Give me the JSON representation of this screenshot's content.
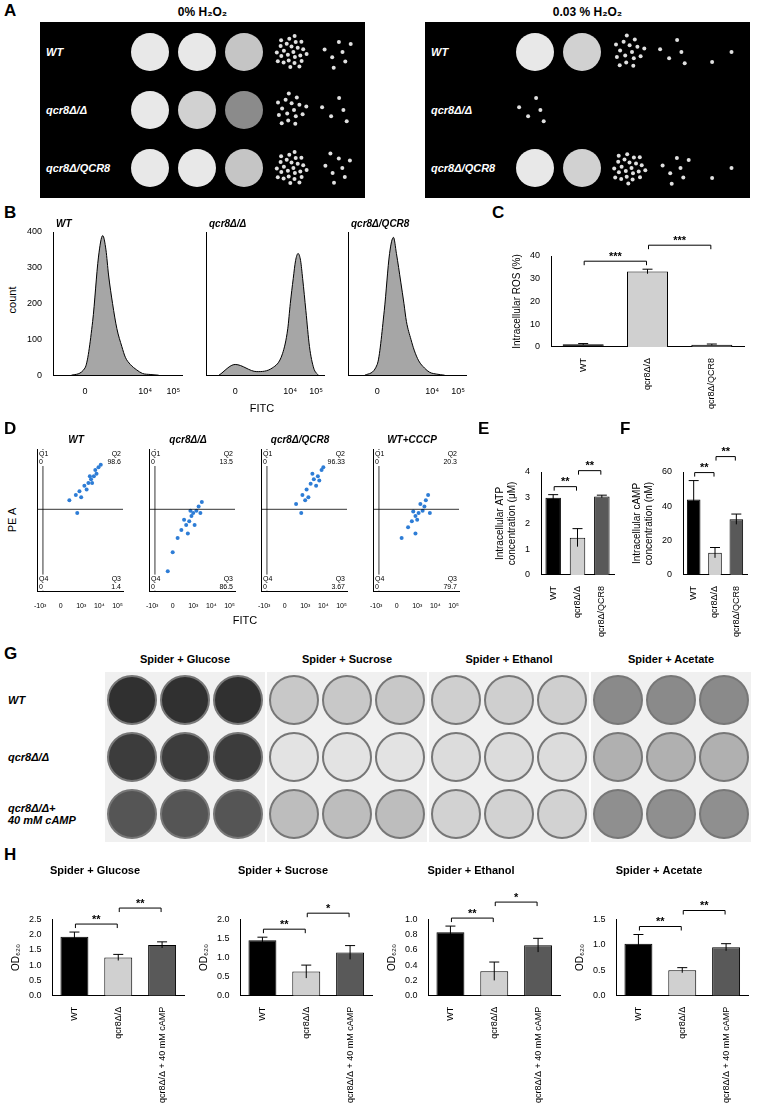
{
  "chart_data": [
    {
      "panel": "B",
      "type": "area",
      "log": "x",
      "x_label": "FITC",
      "y_label": "count",
      "xlim": [
        -1000,
        200000
      ],
      "xticks": [
        0,
        {
          "value": 10000,
          "label": "10⁴"
        },
        {
          "value": 100000,
          "label": "10⁵"
        }
      ],
      "ylim": [
        0,
        400
      ],
      "yticks": [
        0,
        100,
        200,
        300,
        400
      ],
      "color": "#a6a6a6",
      "series": [
        {
          "name": "WT",
          "x": [
            -200,
            0,
            100,
            200,
            300,
            400,
            500,
            700,
            1000,
            1500,
            2000,
            3000,
            5000,
            8000,
            15000,
            30000
          ],
          "values": [
            0,
            20,
            150,
            330,
            390,
            350,
            280,
            200,
            130,
            80,
            50,
            30,
            15,
            5,
            2,
            0
          ]
        },
        {
          "name": "qcr8Δ/Δ",
          "x": [
            -300,
            0,
            500,
            2000,
            5000,
            8000,
            10000,
            13000,
            16000,
            20000,
            25000,
            30000,
            40000,
            55000,
            80000,
            120000
          ],
          "values": [
            0,
            30,
            10,
            20,
            60,
            130,
            200,
            270,
            320,
            340,
            320,
            270,
            180,
            80,
            20,
            0
          ]
        },
        {
          "name": "qcr8Δ/QCR8",
          "x": [
            -200,
            0,
            100,
            200,
            300,
            400,
            600,
            800,
            1000,
            1500,
            2000,
            3000,
            5000,
            8000,
            15000,
            30000
          ],
          "values": [
            0,
            30,
            180,
            340,
            385,
            340,
            260,
            200,
            150,
            100,
            70,
            40,
            20,
            8,
            3,
            0
          ]
        }
      ]
    },
    {
      "panel": "C",
      "type": "bar",
      "categories": [
        "WT",
        "qcr8Δ/Δ",
        "qcr8Δ/QCR8"
      ],
      "values": [
        1.2,
        33.2,
        1.0
      ],
      "errors": [
        0.3,
        1.0,
        0.3
      ],
      "colors": [
        "#000000",
        "#d0d0d0",
        "#595959"
      ],
      "y_label": "Intracellular ROS (%)",
      "ylim": [
        0,
        40
      ],
      "yticks": [
        0,
        10,
        20,
        30,
        40
      ],
      "significance": [
        {
          "from": 0,
          "to": 1,
          "label": "***"
        },
        {
          "from": 1,
          "to": 2,
          "label": "***"
        }
      ]
    },
    {
      "panel": "D",
      "type": "scatter",
      "log": true,
      "x_label": "FITC",
      "y_label": "PE A",
      "tick_labels": "x",
      "xlim": [
        -1500,
        200000
      ],
      "ylim": [
        -1500,
        200000
      ],
      "xticks": [
        {
          "value": -1000,
          "label": "-10³"
        },
        0,
        {
          "value": 1000,
          "label": "10³"
        },
        {
          "value": 10000,
          "label": "10⁴"
        },
        {
          "value": 100000,
          "label": "10⁵"
        }
      ],
      "gates": {
        "x": -700,
        "y": 2000
      },
      "color": "#2e7dd6",
      "series": [
        {
          "name": "WT",
          "points": [
            [
              200,
              4000
            ],
            [
              500,
              6000
            ],
            [
              800,
              8000
            ],
            [
              1500,
              12000
            ],
            [
              2500,
              15000
            ],
            [
              3500,
              20000
            ],
            [
              5000,
              25000
            ],
            [
              7000,
              30000
            ],
            [
              4000,
              15000
            ],
            [
              2000,
              9000
            ],
            [
              1000,
              5000
            ],
            [
              6000,
              40000
            ],
            [
              3000,
              25000
            ],
            [
              9000,
              50000
            ],
            [
              12000,
              60000
            ],
            [
              600,
              1500
            ]
          ],
          "quadrants": [
            {
              "label": "Q1",
              "value": 0
            },
            {
              "label": "Q2",
              "value": 98.6
            },
            {
              "label": "Q3",
              "value": 1.4
            },
            {
              "label": "Q4",
              "value": 0
            }
          ]
        },
        {
          "name": "qcr8Δ/Δ",
          "points": [
            [
              -100,
              -300
            ],
            [
              0,
              0
            ],
            [
              100,
              200
            ],
            [
              200,
              400
            ],
            [
              400,
              600
            ],
            [
              600,
              800
            ],
            [
              800,
              1200
            ],
            [
              1000,
              1500
            ],
            [
              1500,
              1800
            ],
            [
              2000,
              2500
            ],
            [
              3000,
              3500
            ],
            [
              500,
              300
            ],
            [
              300,
              900
            ],
            [
              1200,
              600
            ],
            [
              2500,
              1500
            ],
            [
              700,
              1800
            ]
          ],
          "quadrants": [
            {
              "label": "Q1",
              "value": 0
            },
            {
              "label": "Q2",
              "value": 13.5
            },
            {
              "label": "Q3",
              "value": 86.5
            },
            {
              "label": "Q4",
              "value": 0
            }
          ]
        },
        {
          "name": "qcr8Δ/QCR8",
          "points": [
            [
              300,
              3000
            ],
            [
              700,
              6000
            ],
            [
              1200,
              9000
            ],
            [
              2000,
              14000
            ],
            [
              3000,
              20000
            ],
            [
              5000,
              25000
            ],
            [
              8000,
              40000
            ],
            [
              1500,
              5000
            ],
            [
              4000,
              12000
            ],
            [
              2500,
              30000
            ],
            [
              10000,
              50000
            ],
            [
              600,
              1500
            ],
            [
              1000,
              4000
            ],
            [
              6000,
              18000
            ]
          ],
          "quadrants": [
            {
              "label": "Q1",
              "value": 0
            },
            {
              "label": "Q2",
              "value": 96.33
            },
            {
              "label": "Q3",
              "value": 3.67
            },
            {
              "label": "Q4",
              "value": 0
            }
          ]
        },
        {
          "name": "WT+CCCP",
          "points": [
            [
              100,
              200
            ],
            [
              300,
              500
            ],
            [
              500,
              800
            ],
            [
              800,
              1200
            ],
            [
              1200,
              1500
            ],
            [
              2000,
              1800
            ],
            [
              1500,
              3000
            ],
            [
              3000,
              4000
            ],
            [
              2500,
              2500
            ],
            [
              800,
              300
            ],
            [
              4000,
              6000
            ],
            [
              600,
              1700
            ],
            [
              1000,
              900
            ],
            [
              5000,
              1500
            ]
          ],
          "quadrants": [
            {
              "label": "Q1",
              "value": 0
            },
            {
              "label": "Q2",
              "value": 20.3
            },
            {
              "label": "Q3",
              "value": 79.7
            },
            {
              "label": "Q4",
              "value": 0
            }
          ]
        }
      ]
    },
    {
      "panel": "E",
      "type": "bar",
      "categories": [
        "WT",
        "qcr8Δ/Δ",
        "qcr8Δ/QCR8"
      ],
      "values": [
        3.0,
        1.45,
        3.05
      ],
      "errors": [
        0.12,
        0.35,
        0.05
      ],
      "colors": [
        "#000000",
        "#d0d0d0",
        "#595959"
      ],
      "y_label": "Intracellular ATP concentration (μM)",
      "ylim": [
        0,
        4
      ],
      "yticks": [
        0,
        1,
        2,
        3,
        4
      ],
      "significance": [
        {
          "from": 0,
          "to": 1,
          "label": "**"
        },
        {
          "from": 1,
          "to": 2,
          "label": "**"
        }
      ]
    },
    {
      "panel": "F",
      "type": "bar",
      "categories": [
        "WT",
        "qcr8Δ/Δ",
        "qcr8Δ/QCR8"
      ],
      "values": [
        44,
        13,
        32.5
      ],
      "errors": [
        11,
        3,
        3
      ],
      "colors": [
        "#000000",
        "#d0d0d0",
        "#595959"
      ],
      "y_label": "Intracellular cAMP concentration (nM)",
      "ylim": [
        0,
        60
      ],
      "yticks": [
        0,
        20,
        40,
        60
      ],
      "significance": [
        {
          "from": 0,
          "to": 1,
          "label": "**"
        },
        {
          "from": 1,
          "to": 2,
          "label": "**"
        }
      ]
    },
    {
      "panel": "H",
      "type": "bar",
      "categories": [
        "WT",
        "qcr8Δ/Δ",
        "qcr8Δ/Δ + 40 mM cAMP"
      ],
      "colors": [
        "#000000",
        "#d0d0d0",
        "#595959"
      ],
      "y_label": "OD₆₂₀",
      "charts": [
        {
          "title": "Spider + Glucose",
          "values": [
            1.93,
            1.25,
            1.66
          ],
          "errors": [
            0.15,
            0.1,
            0.1
          ],
          "ylim": [
            0,
            2.5
          ],
          "yticks": [
            {
              "value": 0,
              "label": "0.0"
            },
            0.5,
            {
              "value": 1,
              "label": "1.0"
            },
            1.5,
            {
              "value": 2,
              "label": "2.0"
            },
            2.5
          ],
          "significance": [
            {
              "from": 0,
              "to": 1,
              "label": "**"
            },
            {
              "from": 1,
              "to": 2,
              "label": "**"
            }
          ]
        },
        {
          "title": "Spider + Sucrose",
          "values": [
            1.45,
            0.63,
            1.13
          ],
          "errors": [
            0.08,
            0.17,
            0.18
          ],
          "ylim": [
            0,
            2
          ],
          "yticks": [
            {
              "value": 0,
              "label": "0.0"
            },
            0.5,
            {
              "value": 1,
              "label": "1.0"
            },
            1.5,
            {
              "value": 2,
              "label": "2.0"
            }
          ],
          "significance": [
            {
              "from": 0,
              "to": 1,
              "label": "**"
            },
            {
              "from": 1,
              "to": 2,
              "label": "*"
            }
          ]
        },
        {
          "title": "Spider + Ethanol",
          "values": [
            0.83,
            0.32,
            0.66
          ],
          "errors": [
            0.08,
            0.12,
            0.09
          ],
          "ylim": [
            0,
            1
          ],
          "yticks": [
            {
              "value": 0,
              "label": "0.0"
            },
            0.2,
            0.4,
            0.6,
            0.8,
            {
              "value": 1,
              "label": "1.0"
            }
          ],
          "significance": [
            {
              "from": 0,
              "to": 1,
              "label": "**"
            },
            {
              "from": 1,
              "to": 2,
              "label": "*"
            }
          ]
        },
        {
          "title": "Spider + Acetate",
          "values": [
            1.02,
            0.5,
            0.95
          ],
          "errors": [
            0.18,
            0.05,
            0.07
          ],
          "ylim": [
            0,
            1.5
          ],
          "yticks": [
            {
              "value": 0,
              "label": "0.0"
            },
            0.5,
            {
              "value": 1,
              "label": "1.0"
            },
            1.5
          ],
          "significance": [
            {
              "from": 0,
              "to": 1,
              "label": "**"
            },
            {
              "from": 1,
              "to": 2,
              "label": "**"
            }
          ]
        }
      ]
    }
  ],
  "photos": [
    {
      "panel": "A",
      "titles": [
        "0% H₂O₂",
        "0.03 % H₂O₂"
      ],
      "rows": [
        "WT",
        "qcr8Δ/Δ",
        "qcr8Δ/QCR8"
      ]
    },
    {
      "panel": "G",
      "titles": [
        "Spider + Glucose",
        "Spider + Sucrose",
        "Spider + Ethanol",
        "Spider + Acetate"
      ],
      "rows": [
        "WT",
        "qcr8Δ/Δ",
        "qcr8Δ/Δ+ 40 mM cAMP"
      ]
    }
  ]
}
